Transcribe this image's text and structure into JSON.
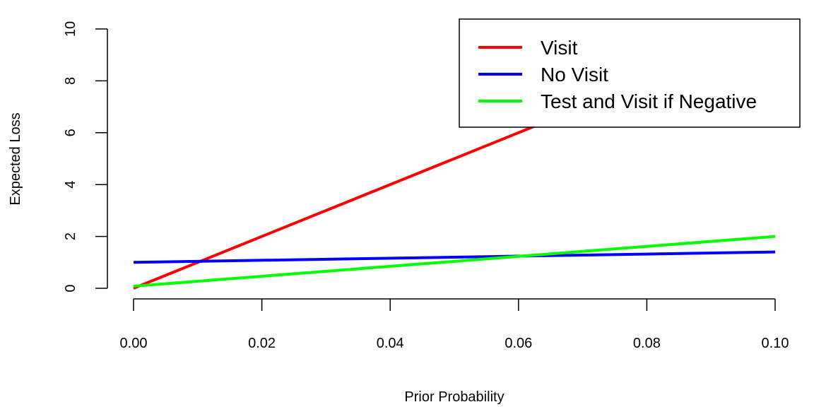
{
  "chart_data": {
    "type": "line",
    "xlabel": "Prior Probability",
    "ylabel": "Expected Loss",
    "xlim": [
      0,
      0.1
    ],
    "ylim": [
      0,
      10
    ],
    "x_ticks": [
      "0.00",
      "0.02",
      "0.04",
      "0.06",
      "0.08",
      "0.10"
    ],
    "y_ticks": [
      "0",
      "2",
      "4",
      "6",
      "8",
      "10"
    ],
    "grid": false,
    "legend_position": "top-right",
    "series": [
      {
        "name": "Visit",
        "color": "#ff0000",
        "x": [
          0,
          0.1
        ],
        "y": [
          0,
          10
        ]
      },
      {
        "name": "No Visit",
        "color": "#0000ff",
        "x": [
          0,
          0.1
        ],
        "y": [
          1.0,
          1.4
        ]
      },
      {
        "name": "Test and Visit if Negative",
        "color": "#00ff00",
        "x": [
          0,
          0.1
        ],
        "y": [
          0.08,
          2.0
        ]
      }
    ]
  }
}
